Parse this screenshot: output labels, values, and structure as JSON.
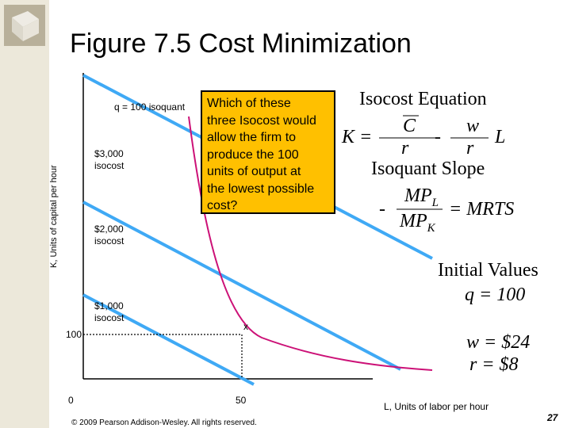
{
  "title": "Figure 7.5 Cost Minimization",
  "axes": {
    "ylabel": "K, Units of capital per hour",
    "xlabel": "L, Units of labor per hour",
    "y_tick": "100",
    "x_origin": "0",
    "x_tick": "50",
    "point_marker": "x"
  },
  "curves": {
    "isoquant": "q = 100 isoquant",
    "iso3000": [
      "$3,000",
      "isocost"
    ],
    "iso2000": [
      "$2,000",
      "isocost"
    ],
    "iso1000": [
      "$1,000",
      "isocost"
    ]
  },
  "question": [
    "Which of these",
    "three Isocost would",
    "allow the firm to",
    "produce the 100",
    "units of output at",
    "the lowest possible",
    "cost?"
  ],
  "equations": {
    "isocost_heading": "Isocost Equation",
    "k_eq": "K =",
    "c_num": "C",
    "minus": "-",
    "w_num": "w",
    "r_den1": "r",
    "r_den2": "r",
    "l_var": "L",
    "isoquant_heading": "Isoquant Slope",
    "mpl": "MP",
    "mpl_sub": "L",
    "minus2": "-",
    "mpk": "MP",
    "mpk_sub": "K",
    "mrts": "= MRTS"
  },
  "initial": {
    "heading": "Initial Values",
    "q": "q = 100",
    "w": "w = $24",
    "r": "r = $8"
  },
  "footer": {
    "copyright": "© 2009 Pearson Addison-Wesley. All rights reserved.",
    "page": "27"
  },
  "colors": {
    "isocost": "#3fa9f5",
    "isoquant": "#cc1177",
    "question_box": "#ffc000",
    "sidebar": "#ece8da"
  }
}
